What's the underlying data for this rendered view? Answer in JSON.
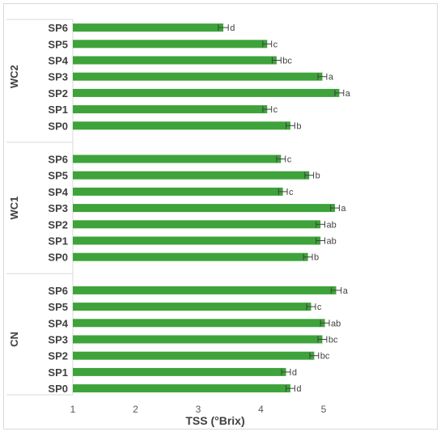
{
  "chart_data": {
    "type": "bar",
    "orientation": "horizontal",
    "xlabel": "TSS (°Brix)",
    "xlim": [
      1,
      5.5
    ],
    "xticks": [
      1,
      2,
      3,
      4,
      5
    ],
    "grid": false,
    "bar_color": "#3ea33a",
    "groups": [
      {
        "name": "WC2",
        "categories": [
          "SP6",
          "SP5",
          "SP4",
          "SP3",
          "SP2",
          "SP1",
          "SP0"
        ],
        "values": [
          3.4,
          4.1,
          4.25,
          4.98,
          5.25,
          4.1,
          4.47
        ],
        "errors": [
          0.08,
          0.07,
          0.07,
          0.07,
          0.07,
          0.07,
          0.07
        ],
        "labels": [
          "d",
          "c",
          "bc",
          "a",
          "a",
          "c",
          "b"
        ]
      },
      {
        "name": "WC1",
        "categories": [
          "SP6",
          "SP5",
          "SP4",
          "SP3",
          "SP2",
          "SP1",
          "SP0"
        ],
        "values": [
          4.32,
          4.77,
          4.35,
          5.18,
          4.95,
          4.95,
          4.75
        ],
        "errors": [
          0.07,
          0.07,
          0.07,
          0.07,
          0.07,
          0.07,
          0.07
        ],
        "labels": [
          "c",
          "b",
          "c",
          "a",
          "ab",
          "ab",
          "b"
        ]
      },
      {
        "name": "CN",
        "categories": [
          "SP6",
          "SP5",
          "SP4",
          "SP3",
          "SP2",
          "SP1",
          "SP0"
        ],
        "values": [
          5.2,
          4.8,
          5.02,
          4.98,
          4.85,
          4.4,
          4.47
        ],
        "errors": [
          0.08,
          0.07,
          0.07,
          0.07,
          0.07,
          0.07,
          0.07
        ],
        "labels": [
          "a",
          "c",
          "ab",
          "bc",
          "bc",
          "d",
          "d"
        ]
      }
    ]
  }
}
